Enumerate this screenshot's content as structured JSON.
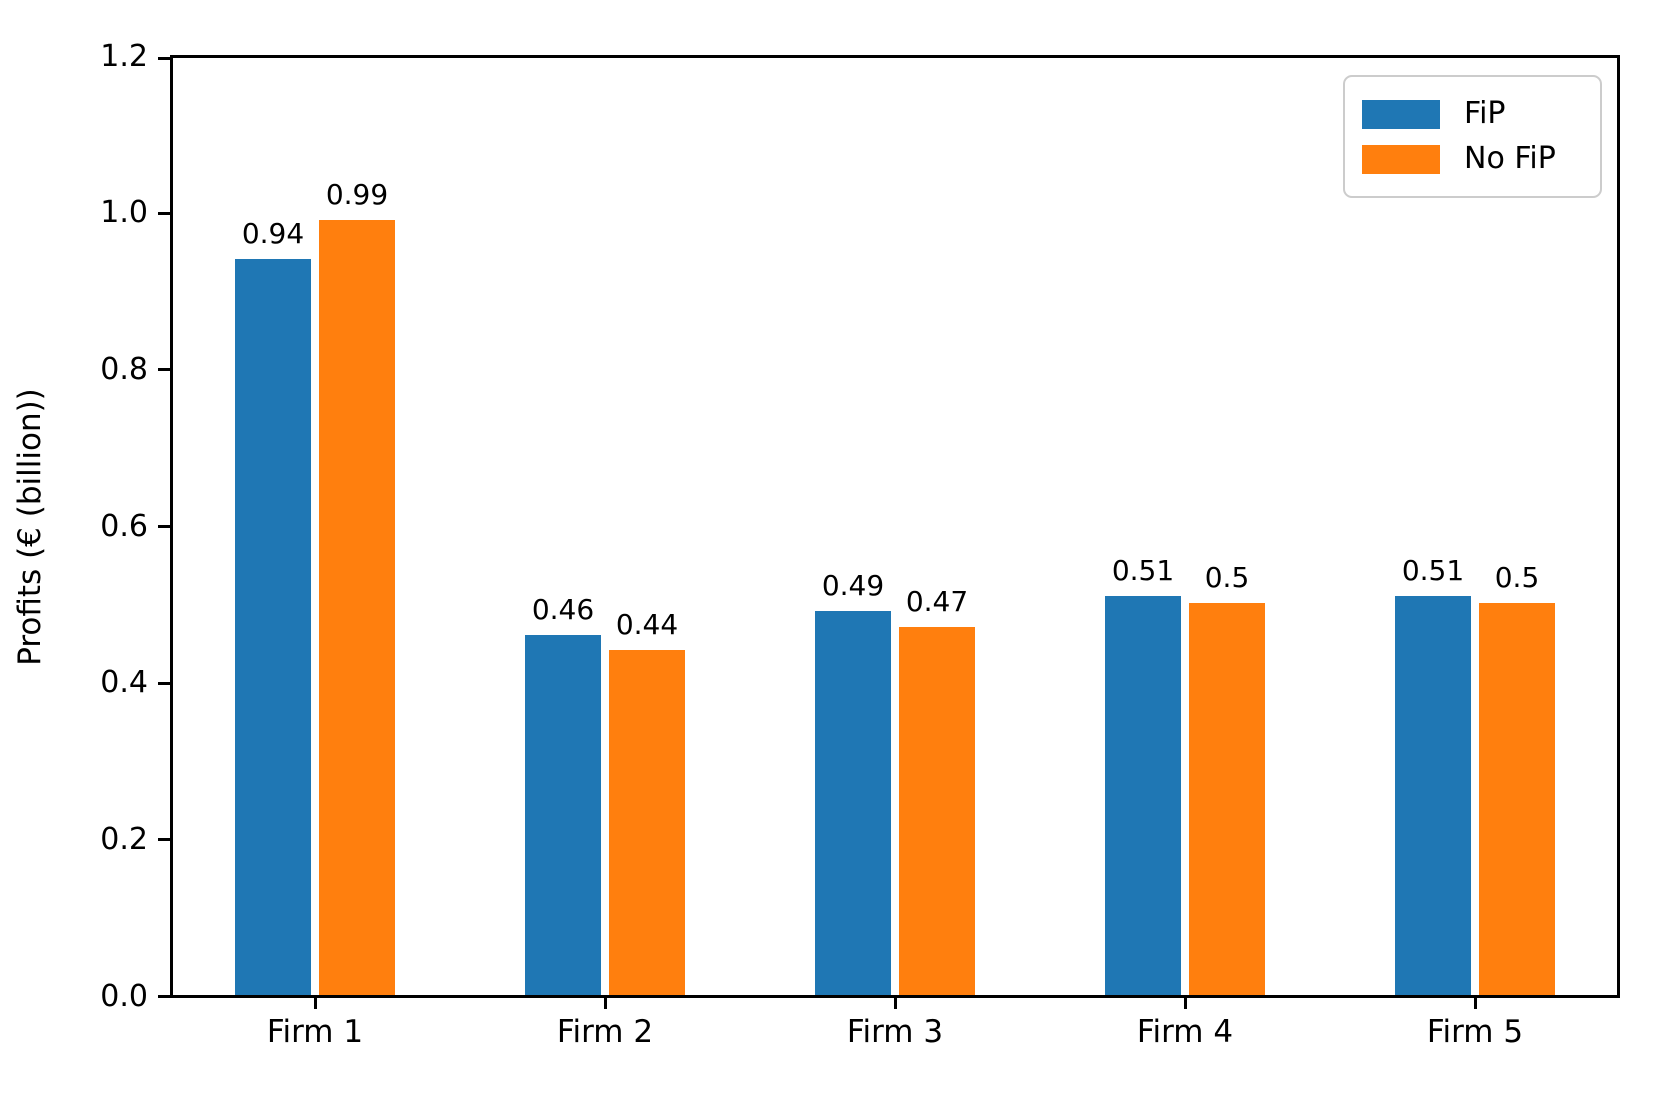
{
  "chart_data": {
    "type": "bar",
    "title": "",
    "xlabel": "",
    "ylabel": "Profits (€ (billion))",
    "categories": [
      "Firm 1",
      "Firm 2",
      "Firm 3",
      "Firm 4",
      "Firm 5"
    ],
    "series": [
      {
        "name": "FiP",
        "color": "#1f77b4",
        "values": [
          0.94,
          0.46,
          0.49,
          0.51,
          0.51
        ],
        "bar_labels": [
          "0.94",
          "0.46",
          "0.49",
          "0.51",
          "0.51"
        ]
      },
      {
        "name": "No FiP",
        "color": "#ff7f0e",
        "values": [
          0.99,
          0.44,
          0.47,
          0.5,
          0.5
        ],
        "bar_labels": [
          "0.99",
          "0.44",
          "0.47",
          "0.5",
          "0.5"
        ]
      }
    ],
    "ylim": [
      0,
      1.2
    ],
    "yticks": [
      0,
      0.2,
      0.4,
      0.6,
      0.8,
      1.0,
      1.2
    ],
    "ytick_labels": [
      "0.0",
      "0.2",
      "0.4",
      "0.6",
      "0.8",
      "1.0",
      "1.2"
    ],
    "legend": {
      "position": "upper right",
      "entries": [
        "FiP",
        "No FiP"
      ]
    },
    "grid": false,
    "background": "#ffffff",
    "text_color": "#000000"
  }
}
